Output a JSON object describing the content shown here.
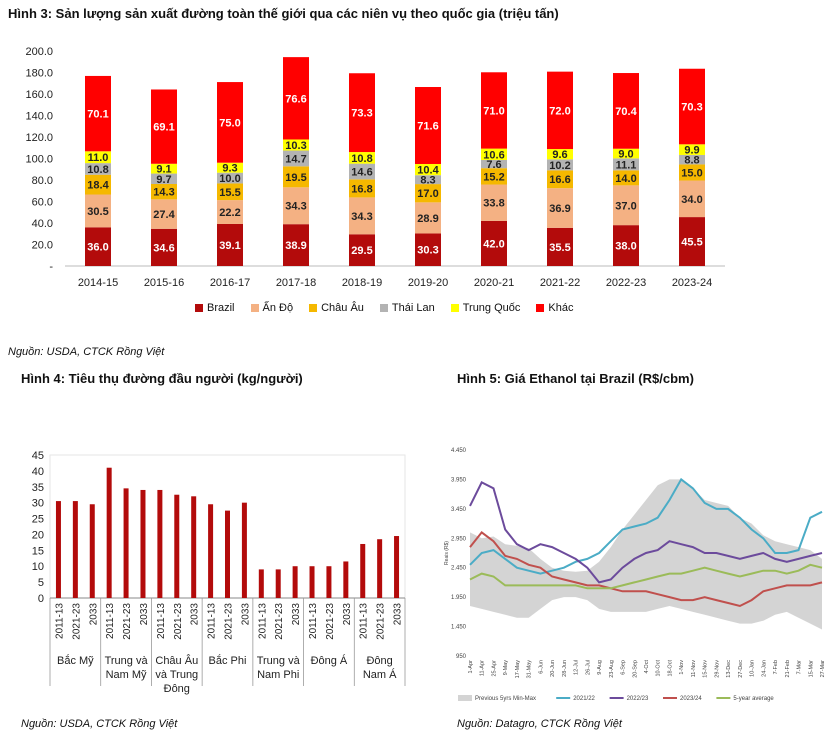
{
  "fig3": {
    "title": "Hình 3: Sản lượng sản xuất đường toàn thế giới qua các niên vụ theo quốc gia (triệu tấn)",
    "source": "Nguồn: USDA, CTCK Rồng Việt"
  },
  "fig4": {
    "title": "Hình 4: Tiêu thụ đường đầu người (kg/người)",
    "source": "Nguồn: USDA, CTCK Rồng Việt"
  },
  "fig5": {
    "title": "Hình 5: Giá Ethanol tại Brazil (R$/cbm)",
    "source": "Nguồn: Datagro, CTCK Rồng Việt"
  },
  "chart_data": [
    {
      "type": "bar",
      "stacked": true,
      "categories": [
        "2014-15",
        "2015-16",
        "2016-17",
        "2017-18",
        "2018-19",
        "2019-20",
        "2020-21",
        "2021-22",
        "2022-23",
        "2023-24"
      ],
      "y_ticks": [
        "-",
        "20.0",
        "40.0",
        "60.0",
        "80.0",
        "100.0",
        "120.0",
        "140.0",
        "160.0",
        "180.0",
        "200.0"
      ],
      "ylim": [
        0,
        200
      ],
      "legend_position": "bottom",
      "series": [
        {
          "name": "Brazil",
          "color": "#b30b0b",
          "values": [
            36.0,
            34.6,
            39.1,
            38.9,
            29.5,
            30.3,
            42.0,
            35.5,
            38.0,
            45.5
          ]
        },
        {
          "name": "Ấn Độ",
          "color": "#f4b183",
          "values": [
            30.5,
            27.4,
            22.2,
            34.3,
            34.3,
            28.9,
            33.8,
            36.9,
            37.0,
            34.0
          ]
        },
        {
          "name": "Châu Âu",
          "color": "#f5b800",
          "values": [
            18.4,
            14.3,
            15.5,
            19.5,
            16.8,
            17.0,
            15.2,
            16.6,
            14.0,
            15.0
          ]
        },
        {
          "name": "Thái Lan",
          "color": "#b3b3b3",
          "values": [
            10.8,
            9.7,
            10.0,
            14.7,
            14.6,
            8.3,
            7.6,
            10.2,
            11.1,
            8.8
          ]
        },
        {
          "name": "Trung Quốc",
          "color": "#ffff00",
          "values": [
            11.0,
            9.1,
            9.3,
            10.3,
            10.8,
            10.4,
            10.6,
            9.6,
            9.0,
            9.9
          ]
        },
        {
          "name": "Khác",
          "color": "#ff0000",
          "values": [
            70.1,
            69.1,
            75.0,
            76.6,
            73.3,
            71.6,
            71.0,
            72.0,
            70.4,
            70.3
          ]
        }
      ],
      "value_labels": [
        [
          "36.0",
          "30.5",
          "18.4",
          "10.8",
          "11.0",
          "70.1"
        ],
        [
          "34.6",
          "27.4",
          "14.3",
          "9.7",
          "9.1",
          "69.1"
        ],
        [
          "39.1",
          "22.2",
          "15.5",
          "10.0",
          "9.3",
          "75.0"
        ],
        [
          "38.9",
          "34.3",
          "19.5",
          "14.7",
          "10.3",
          "76.6"
        ],
        [
          "29.5",
          "34.3",
          "16.8",
          "14.6",
          "10.8",
          "73.3"
        ],
        [
          "30.3",
          "28.9",
          "17.0",
          "8.3",
          "10.4",
          "71.6"
        ],
        [
          "42.0",
          "33.8",
          "15.2",
          "7.6",
          "10.6",
          "71.0"
        ],
        [
          "35.5",
          "36.9",
          "16.6",
          "10.2",
          "9.6",
          "72.0"
        ],
        [
          "38.0",
          "37.0",
          "14.0",
          "11.1",
          "9.0",
          "70.4"
        ],
        [
          "45.5",
          "34.0",
          "15.0",
          "8.8",
          "9.9",
          "70.3"
        ]
      ]
    },
    {
      "type": "bar",
      "y_ticks": [
        "0",
        "5",
        "10",
        "15",
        "20",
        "25",
        "30",
        "35",
        "40",
        "45"
      ],
      "ylim": [
        0,
        45
      ],
      "color": "#b30b0b",
      "groups": [
        {
          "label_lines": [
            "Bắc Mỹ"
          ],
          "years": [
            "2011-13",
            "2021-23",
            "2033"
          ],
          "values": [
            30.5,
            30.5,
            29.5
          ]
        },
        {
          "label_lines": [
            "Trung và",
            "Nam Mỹ"
          ],
          "years": [
            "2011-13",
            "2021-23",
            "2033"
          ],
          "values": [
            41,
            34.5,
            34
          ]
        },
        {
          "label_lines": [
            "Châu Âu",
            "và Trung",
            "Đông"
          ],
          "years": [
            "2011-13",
            "2021-23",
            "2033"
          ],
          "values": [
            34,
            32.5,
            32
          ]
        },
        {
          "label_lines": [
            "Bắc Phi"
          ],
          "years": [
            "2011-13",
            "2021-23",
            "2033"
          ],
          "values": [
            29.5,
            27.5,
            30
          ]
        },
        {
          "label_lines": [
            "Trung và",
            "Nam Phi"
          ],
          "years": [
            "2011-13",
            "2021-23",
            "2033"
          ],
          "values": [
            9,
            9,
            10
          ]
        },
        {
          "label_lines": [
            "Đông Á"
          ],
          "years": [
            "2011-13",
            "2021-23",
            "2033"
          ],
          "values": [
            10,
            10,
            11.5
          ]
        },
        {
          "label_lines": [
            "Đông",
            "Nam Á"
          ],
          "years": [
            "2011-13",
            "2021-23",
            "2033"
          ],
          "values": [
            17,
            18.5,
            19.5
          ]
        }
      ]
    },
    {
      "type": "line",
      "y_ticks": [
        "950",
        "1.450",
        "1.950",
        "2.450",
        "2.950",
        "3.450",
        "3.950",
        "4.450"
      ],
      "ylim": [
        950,
        4450
      ],
      "ylabel": "Reais (R$)",
      "x_ticks": [
        "1-Apr",
        "15-Apr",
        "29-Apr",
        "13-May",
        "27-May",
        "10-Jun",
        "24-Jun",
        "8-Jul",
        "22-Jul",
        "5-Aug",
        "19-Aug",
        "2-Sep",
        "16-Sep",
        "30-Sep",
        "14-Oct",
        "28-Oct",
        "11-Nov",
        "25-Nov",
        "9-Dec",
        "23-Dec",
        "6-Jan",
        "20-Jan",
        "3-Feb",
        "17-Feb",
        "2-Mar",
        "16-Mar",
        "30-Mar"
      ],
      "x_tick_labels_shown": [
        "1-Apr",
        "11-Apr",
        "25-Apr",
        "9-May",
        "17-May",
        "31-May",
        "6-Jun",
        "20-Jun",
        "28-Jun",
        "12-Jul",
        "26-Jul",
        "9-Aug",
        "23-Aug",
        "6-Sep",
        "20-Sep",
        "4-Oct",
        "10-Oct",
        "18-Oct",
        "1-Nov",
        "11-Nov",
        "15-Nov",
        "29-Nov",
        "13-Dec",
        "27-Dec",
        "10-Jan",
        "24-Jan",
        "7-Feb",
        "21-Feb",
        "7-Mar",
        "15-Mar",
        "27-Mar"
      ],
      "legend_position": "bottom",
      "series": [
        {
          "name": "Previous 5yrs Min-Max",
          "color": "#d4d4d4",
          "kind": "band",
          "upper": [
            3050,
            2950,
            2980,
            2850,
            2820,
            2780,
            2600,
            2450,
            2400,
            2380,
            2400,
            2550,
            2800,
            3100,
            3350,
            3600,
            3850,
            3950,
            3950,
            3800,
            3600,
            3550,
            3500,
            3300,
            3200,
            3000,
            2900,
            2850,
            2800,
            2750,
            2600
          ],
          "lower": [
            1800,
            1750,
            1700,
            1650,
            1600,
            1600,
            1750,
            1900,
            1950,
            1950,
            1900,
            1750,
            1700,
            1700,
            1700,
            1700,
            1750,
            1800,
            1750,
            1700,
            1650,
            1600,
            1550,
            1500,
            1500,
            1550,
            1650,
            1700,
            1600,
            1500,
            1400
          ]
        },
        {
          "name": "2021/22",
          "color": "#4bacc6",
          "values": [
            2500,
            2700,
            2750,
            2600,
            2450,
            2400,
            2350,
            2400,
            2450,
            2550,
            2600,
            2700,
            2900,
            3100,
            3150,
            3200,
            3300,
            3600,
            3950,
            3800,
            3550,
            3450,
            3450,
            3300,
            3100,
            2950,
            2700,
            2700,
            2750,
            3300,
            3400
          ]
        },
        {
          "name": "2022/23",
          "color": "#6c4b9c",
          "values": [
            3500,
            3900,
            3800,
            3100,
            2850,
            2750,
            2850,
            2800,
            2700,
            2600,
            2450,
            2200,
            2250,
            2450,
            2600,
            2700,
            2750,
            2900,
            2850,
            2800,
            2700,
            2700,
            2650,
            2600,
            2650,
            2700,
            2600,
            2550,
            2600,
            2650,
            2700
          ]
        },
        {
          "name": "2023/24",
          "color": "#c0504d",
          "values": [
            2800,
            3050,
            2900,
            2650,
            2600,
            2500,
            2450,
            2300,
            2250,
            2200,
            2150,
            2150,
            2100,
            2050,
            2050,
            2050,
            2000,
            1950,
            1900,
            1900,
            1950,
            1900,
            1850,
            1800,
            1900,
            2050,
            2100,
            2150,
            2150,
            2150,
            2200
          ]
        },
        {
          "name": "5-year average",
          "color": "#9bbb59",
          "values": [
            2250,
            2350,
            2300,
            2150,
            2150,
            2150,
            2150,
            2150,
            2150,
            2150,
            2100,
            2100,
            2100,
            2150,
            2200,
            2250,
            2300,
            2350,
            2350,
            2400,
            2450,
            2400,
            2350,
            2300,
            2350,
            2400,
            2400,
            2350,
            2400,
            2500,
            2450
          ]
        }
      ]
    }
  ]
}
